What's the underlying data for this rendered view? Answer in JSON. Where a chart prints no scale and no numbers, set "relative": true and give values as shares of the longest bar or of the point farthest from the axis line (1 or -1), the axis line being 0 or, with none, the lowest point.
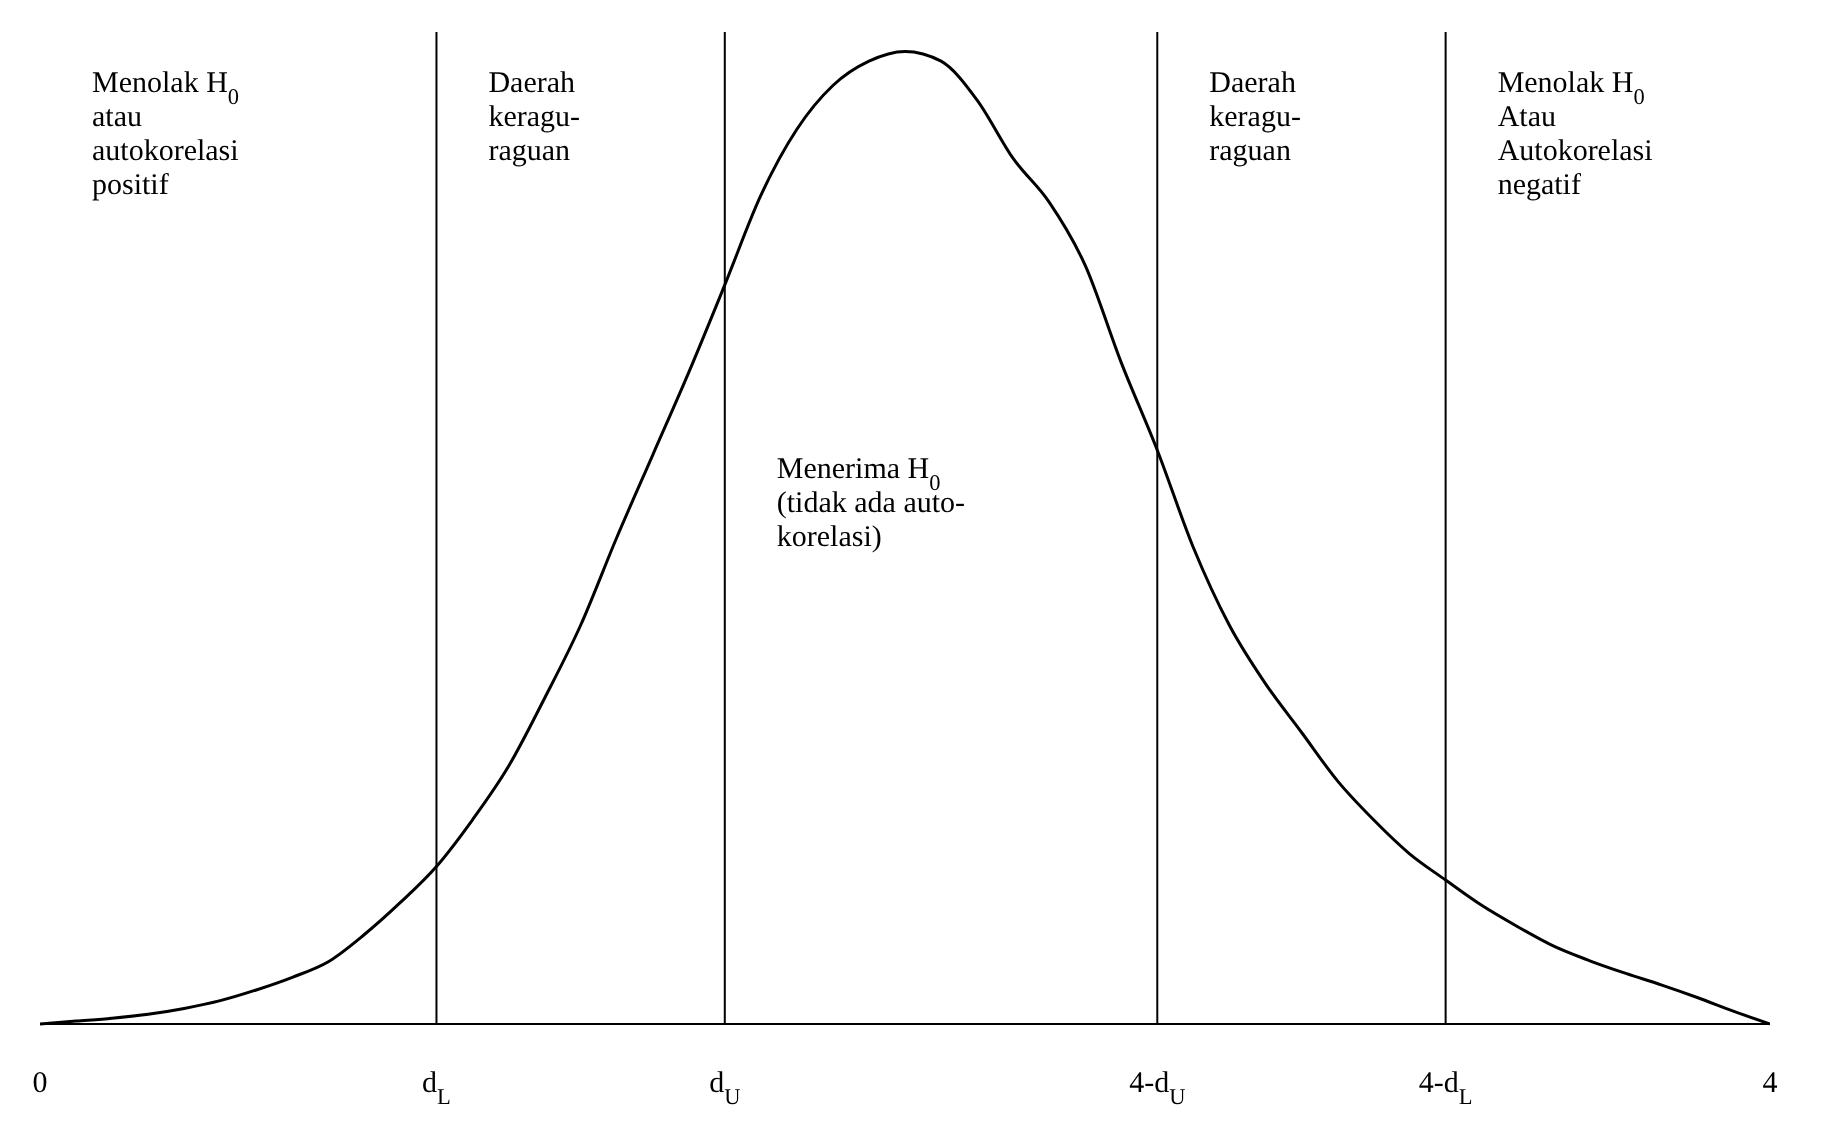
{
  "chart_data": {
    "type": "line",
    "relative": true,
    "categories": [
      "0",
      null,
      null,
      null,
      null,
      null,
      null,
      null,
      null,
      null,
      null,
      "d$_{L}$",
      null,
      null,
      null,
      null,
      null,
      null,
      null,
      "d$_{U}$",
      null,
      null,
      null,
      null,
      null,
      null,
      null,
      null,
      null,
      null,
      null,
      "4-d$_{U}$",
      null,
      null,
      null,
      null,
      null,
      null,
      null,
      "4-d$_{L}$",
      null,
      null,
      null,
      null,
      null,
      null,
      null,
      null,
      "4"
    ],
    "series": [
      {
        "color": "#000000",
        "values": [
          0,
          0.003,
          0.006,
          0.01,
          0.016,
          0.024,
          0.035,
          0.048,
          0.064,
          0.092,
          0.125,
          0.162,
          0.21,
          0.265,
          0.335,
          0.41,
          0.5,
          0.585,
          0.67,
          0.76,
          0.852,
          0.92,
          0.965,
          0.99,
          1,
          0.99,
          0.95,
          0.89,
          0.845,
          0.78,
          0.68,
          0.59,
          0.49,
          0.41,
          0.35,
          0.3,
          0.25,
          0.21,
          0.175,
          0.148,
          0.122,
          0.1,
          0.08,
          0.065,
          0.052,
          0.04,
          0.027,
          0.013,
          0
        ]
      }
    ],
    "ref_lines": [
      {
        "axis": "x",
        "value": "d$_{L}$",
        "color": "#000000"
      },
      {
        "axis": "x",
        "value": "d$_{U}$",
        "color": "#000000"
      },
      {
        "axis": "x",
        "value": "4-d$_{U}$",
        "color": "#000000"
      },
      {
        "axis": "x",
        "value": "4-d$_{L}$",
        "color": "#000000"
      }
    ],
    "annotations": [
      "Menolak H$_{0}$\natau\nautokorelasi\npositif",
      "Daerah\nkeragu-\nraguan",
      "Menerima H$_{0}$\n(tidak ada auto-\nkorelasi)",
      "Daerah\nkeragu-\nraguan",
      "Menolak H$_{0}$\nAtau\nAutokorelasi\nnegatif"
    ],
    "grid": false,
    "legend": false,
    "marker": "none",
    "line_style": "solid"
  }
}
